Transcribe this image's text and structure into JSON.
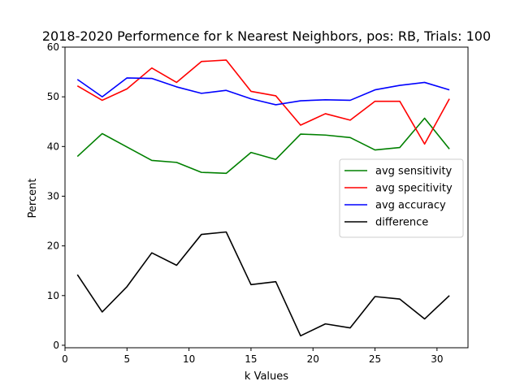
{
  "chart_data": {
    "type": "line",
    "title": "2018-2020 Performence for k Nearest Neighbors, pos: RB, Trials: 100",
    "xlabel": "k Values",
    "ylabel": "Percent",
    "xlim": [
      0,
      32.5
    ],
    "ylim": [
      -0.5,
      60
    ],
    "xticks": [
      0,
      5,
      10,
      15,
      20,
      25,
      30
    ],
    "yticks": [
      0,
      10,
      20,
      30,
      40,
      50,
      60
    ],
    "grid": false,
    "legend_position": "center-right",
    "x": [
      1,
      3,
      5,
      7,
      9,
      11,
      13,
      15,
      17,
      19,
      21,
      23,
      25,
      27,
      29,
      31
    ],
    "series": [
      {
        "name": "avg sensitivity",
        "color": "#008000",
        "values": [
          38.0,
          42.6,
          39.9,
          37.2,
          36.8,
          34.8,
          34.6,
          38.8,
          37.4,
          42.5,
          42.3,
          41.8,
          39.3,
          39.8,
          45.7,
          39.5
        ]
      },
      {
        "name": "avg specitivity",
        "color": "#ff0000",
        "values": [
          52.2,
          49.3,
          51.6,
          55.8,
          52.9,
          57.1,
          57.4,
          51.1,
          50.2,
          44.3,
          46.6,
          45.3,
          49.1,
          49.1,
          40.5,
          49.6
        ]
      },
      {
        "name": "avg accuracy",
        "color": "#0000ff",
        "values": [
          53.5,
          50.0,
          53.8,
          53.7,
          52.0,
          50.7,
          51.3,
          49.6,
          48.4,
          49.2,
          49.4,
          49.3,
          51.4,
          52.3,
          52.9,
          51.4
        ]
      },
      {
        "name": "difference",
        "color": "#000000",
        "values": [
          14.2,
          6.7,
          11.8,
          18.6,
          16.1,
          22.3,
          22.8,
          12.2,
          12.8,
          1.9,
          4.3,
          3.5,
          9.8,
          9.3,
          5.3,
          10.0
        ]
      }
    ]
  }
}
